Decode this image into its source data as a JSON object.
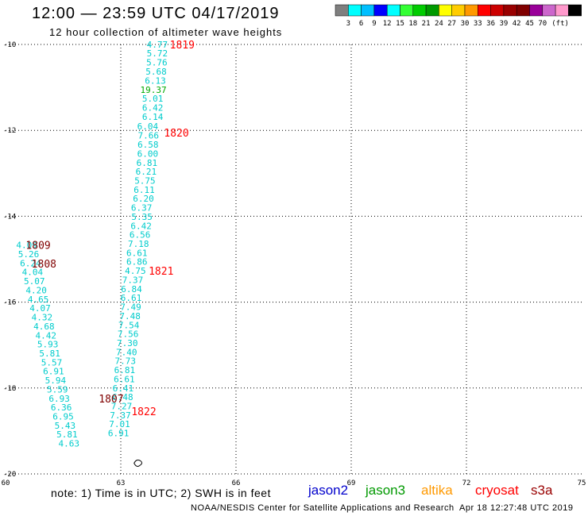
{
  "header": {
    "title": "12:00 — 23:59 UTC 04/17/2019",
    "subtitle": "12 hour collection of altimeter wave heights"
  },
  "colorbar": {
    "colors": [
      "#7f7f7f",
      "#00ffff",
      "#00bfff",
      "#0000ff",
      "#00ffff",
      "#33ff33",
      "#00cc00",
      "#009900",
      "#ffff00",
      "#ffcc00",
      "#ff9900",
      "#ff0000",
      "#cc0000",
      "#990000",
      "#800000",
      "#990099",
      "#cc66cc",
      "#ff99cc",
      "#000000"
    ],
    "labels": [
      "3",
      "6",
      "9",
      "12",
      "15",
      "18",
      "21",
      "24",
      "27",
      "30",
      "33",
      "36",
      "39",
      "42",
      "45",
      "70",
      "(ft)"
    ]
  },
  "chart_data": {
    "type": "scatter",
    "x_axis": {
      "range": [
        60,
        75
      ],
      "ticks": [
        "60",
        "63",
        "66",
        "69",
        "72",
        "75"
      ]
    },
    "y_axis": {
      "range": [
        -20,
        -10
      ],
      "ticks": [
        "-10",
        "-12",
        "-14",
        "-16",
        "-18",
        "-20"
      ]
    },
    "grid": true,
    "observations": [
      {
        "lon": 63.95,
        "lat": -10.0,
        "text": "4.77",
        "color": "#00cccc"
      },
      {
        "lon": 63.95,
        "lat": -10.2,
        "text": "5.72",
        "color": "#00cccc"
      },
      {
        "lon": 63.94,
        "lat": -10.42,
        "text": "5.76",
        "color": "#00cccc"
      },
      {
        "lon": 63.92,
        "lat": -10.63,
        "text": "5.68",
        "color": "#00cccc"
      },
      {
        "lon": 63.9,
        "lat": -10.84,
        "text": "6.13",
        "color": "#00cccc"
      },
      {
        "lon": 63.85,
        "lat": -11.05,
        "text": "19.37",
        "color": "#00aa00"
      },
      {
        "lon": 63.83,
        "lat": -11.26,
        "text": "5.01",
        "color": "#00cccc"
      },
      {
        "lon": 63.83,
        "lat": -11.47,
        "text": "6.42",
        "color": "#00cccc"
      },
      {
        "lon": 63.83,
        "lat": -11.68,
        "text": "6.14",
        "color": "#00cccc"
      },
      {
        "lon": 63.7,
        "lat": -11.9,
        "text": "6.04",
        "color": "#00cccc"
      },
      {
        "lon": 63.72,
        "lat": -12.12,
        "text": "7.66",
        "color": "#00cccc"
      },
      {
        "lon": 63.71,
        "lat": -12.33,
        "text": "6.58",
        "color": "#00cccc"
      },
      {
        "lon": 63.7,
        "lat": -12.54,
        "text": "6.00",
        "color": "#00cccc"
      },
      {
        "lon": 63.68,
        "lat": -12.75,
        "text": "6.81",
        "color": "#00cccc"
      },
      {
        "lon": 63.66,
        "lat": -12.96,
        "text": "6.21",
        "color": "#00cccc"
      },
      {
        "lon": 63.63,
        "lat": -13.17,
        "text": "5.75",
        "color": "#00cccc"
      },
      {
        "lon": 63.61,
        "lat": -13.38,
        "text": "6.11",
        "color": "#00cccc"
      },
      {
        "lon": 63.59,
        "lat": -13.59,
        "text": "6.20",
        "color": "#00cccc"
      },
      {
        "lon": 63.54,
        "lat": -13.8,
        "text": "6.37",
        "color": "#00cccc"
      },
      {
        "lon": 63.55,
        "lat": -14.01,
        "text": "5.35",
        "color": "#00cccc"
      },
      {
        "lon": 63.53,
        "lat": -14.22,
        "text": "6.42",
        "color": "#00cccc"
      },
      {
        "lon": 63.5,
        "lat": -14.43,
        "text": "6.56",
        "color": "#00cccc"
      },
      {
        "lon": 63.46,
        "lat": -14.64,
        "text": "7.18",
        "color": "#00cccc"
      },
      {
        "lon": 63.42,
        "lat": -14.85,
        "text": "6.61",
        "color": "#00cccc"
      },
      {
        "lon": 63.42,
        "lat": -15.06,
        "text": "6.86",
        "color": "#00cccc"
      },
      {
        "lon": 63.38,
        "lat": -15.27,
        "text": "4.75",
        "color": "#00cccc"
      },
      {
        "lon": 63.31,
        "lat": -15.48,
        "text": "7.37",
        "color": "#00cccc"
      },
      {
        "lon": 63.28,
        "lat": -15.69,
        "text": "6.84",
        "color": "#00cccc"
      },
      {
        "lon": 63.27,
        "lat": -15.9,
        "text": "6.61",
        "color": "#00cccc"
      },
      {
        "lon": 63.26,
        "lat": -16.11,
        "text": "7.49",
        "color": "#00cccc"
      },
      {
        "lon": 63.24,
        "lat": -16.32,
        "text": "7.48",
        "color": "#00cccc"
      },
      {
        "lon": 63.21,
        "lat": -16.53,
        "text": "7.54",
        "color": "#00cccc"
      },
      {
        "lon": 63.19,
        "lat": -16.74,
        "text": "7.56",
        "color": "#00cccc"
      },
      {
        "lon": 63.17,
        "lat": -16.95,
        "text": "7.30",
        "color": "#00cccc"
      },
      {
        "lon": 63.15,
        "lat": -17.16,
        "text": "7.40",
        "color": "#00cccc"
      },
      {
        "lon": 63.12,
        "lat": -17.37,
        "text": "7.73",
        "color": "#00cccc"
      },
      {
        "lon": 63.1,
        "lat": -17.58,
        "text": "6.81",
        "color": "#00cccc"
      },
      {
        "lon": 63.09,
        "lat": -17.79,
        "text": "6.61",
        "color": "#00cccc"
      },
      {
        "lon": 63.06,
        "lat": -18.0,
        "text": "6.41",
        "color": "#00cccc"
      },
      {
        "lon": 63.05,
        "lat": -18.21,
        "text": "6.48",
        "color": "#00cccc"
      },
      {
        "lon": 63.02,
        "lat": -18.42,
        "text": "7.27",
        "color": "#00cccc"
      },
      {
        "lon": 62.99,
        "lat": -18.63,
        "text": "7.37",
        "color": "#00cccc"
      },
      {
        "lon": 62.97,
        "lat": -18.84,
        "text": "7.01",
        "color": "#00cccc"
      },
      {
        "lon": 62.94,
        "lat": -19.05,
        "text": "6.91",
        "color": "#00cccc"
      },
      {
        "lon": 60.55,
        "lat": -14.67,
        "text": "4.09",
        "color": "#00cccc"
      },
      {
        "lon": 60.6,
        "lat": -14.88,
        "text": "5.26",
        "color": "#00cccc"
      },
      {
        "lon": 60.65,
        "lat": -15.09,
        "text": "6.24",
        "color": "#00cccc"
      },
      {
        "lon": 60.7,
        "lat": -15.3,
        "text": "4.04",
        "color": "#00cccc"
      },
      {
        "lon": 60.75,
        "lat": -15.51,
        "text": "5.07",
        "color": "#00cccc"
      },
      {
        "lon": 60.8,
        "lat": -15.72,
        "text": "4.20",
        "color": "#00cccc"
      },
      {
        "lon": 60.85,
        "lat": -15.93,
        "text": "4.65",
        "color": "#00cccc"
      },
      {
        "lon": 60.9,
        "lat": -16.14,
        "text": "4.07",
        "color": "#00cccc"
      },
      {
        "lon": 60.95,
        "lat": -16.35,
        "text": "4.32",
        "color": "#00cccc"
      },
      {
        "lon": 61.0,
        "lat": -16.56,
        "text": "4.68",
        "color": "#00cccc"
      },
      {
        "lon": 61.05,
        "lat": -16.77,
        "text": "4.42",
        "color": "#00cccc"
      },
      {
        "lon": 61.1,
        "lat": -16.98,
        "text": "5.93",
        "color": "#00cccc"
      },
      {
        "lon": 61.15,
        "lat": -17.19,
        "text": "5.81",
        "color": "#00cccc"
      },
      {
        "lon": 61.2,
        "lat": -17.4,
        "text": "5.57",
        "color": "#00cccc"
      },
      {
        "lon": 61.25,
        "lat": -17.61,
        "text": "6.91",
        "color": "#00cccc"
      },
      {
        "lon": 61.3,
        "lat": -17.82,
        "text": "5.94",
        "color": "#00cccc"
      },
      {
        "lon": 61.35,
        "lat": -18.03,
        "text": "5.59",
        "color": "#00cccc"
      },
      {
        "lon": 61.4,
        "lat": -18.24,
        "text": "6.93",
        "color": "#00cccc"
      },
      {
        "lon": 61.45,
        "lat": -18.45,
        "text": "6.36",
        "color": "#00cccc"
      },
      {
        "lon": 61.5,
        "lat": -18.66,
        "text": "6.95",
        "color": "#00cccc"
      },
      {
        "lon": 61.55,
        "lat": -18.87,
        "text": "5.43",
        "color": "#00cccc"
      },
      {
        "lon": 61.6,
        "lat": -19.08,
        "text": "5.81",
        "color": "#00cccc"
      },
      {
        "lon": 61.65,
        "lat": -19.29,
        "text": "4.63",
        "color": "#00cccc"
      }
    ],
    "time_labels": [
      {
        "lon": 64.6,
        "lat": -10.0,
        "text": "1819",
        "color": "#ff0000"
      },
      {
        "lon": 64.45,
        "lat": -12.05,
        "text": "1820",
        "color": "#ff0000"
      },
      {
        "lon": 64.05,
        "lat": -15.27,
        "text": "1821",
        "color": "#ff0000"
      },
      {
        "lon": 63.6,
        "lat": -18.54,
        "text": "1822",
        "color": "#ff0000"
      },
      {
        "lon": 60.85,
        "lat": -14.67,
        "text": "1809",
        "color": "#800000"
      },
      {
        "lon": 61.0,
        "lat": -15.1,
        "text": "1808",
        "color": "#800000"
      },
      {
        "lon": 62.75,
        "lat": -18.24,
        "text": "1807",
        "color": "#800000"
      }
    ]
  },
  "legend": {
    "items": [
      {
        "text": "jason2",
        "color": "#0000cc"
      },
      {
        "text": "jason3",
        "color": "#009900"
      },
      {
        "text": "altika",
        "color": "#ff9900"
      },
      {
        "text": "cryosat",
        "color": "#ff0000"
      },
      {
        "text": "s3a",
        "color": "#990000"
      }
    ]
  },
  "footer": {
    "note": "note: 1) Time is in UTC; 2) SWH is in feet",
    "credit": "NOAA/NESDIS Center for Satellite Applications and Research",
    "timestamp": "Apr 18 12:27:48 UTC 2019"
  }
}
